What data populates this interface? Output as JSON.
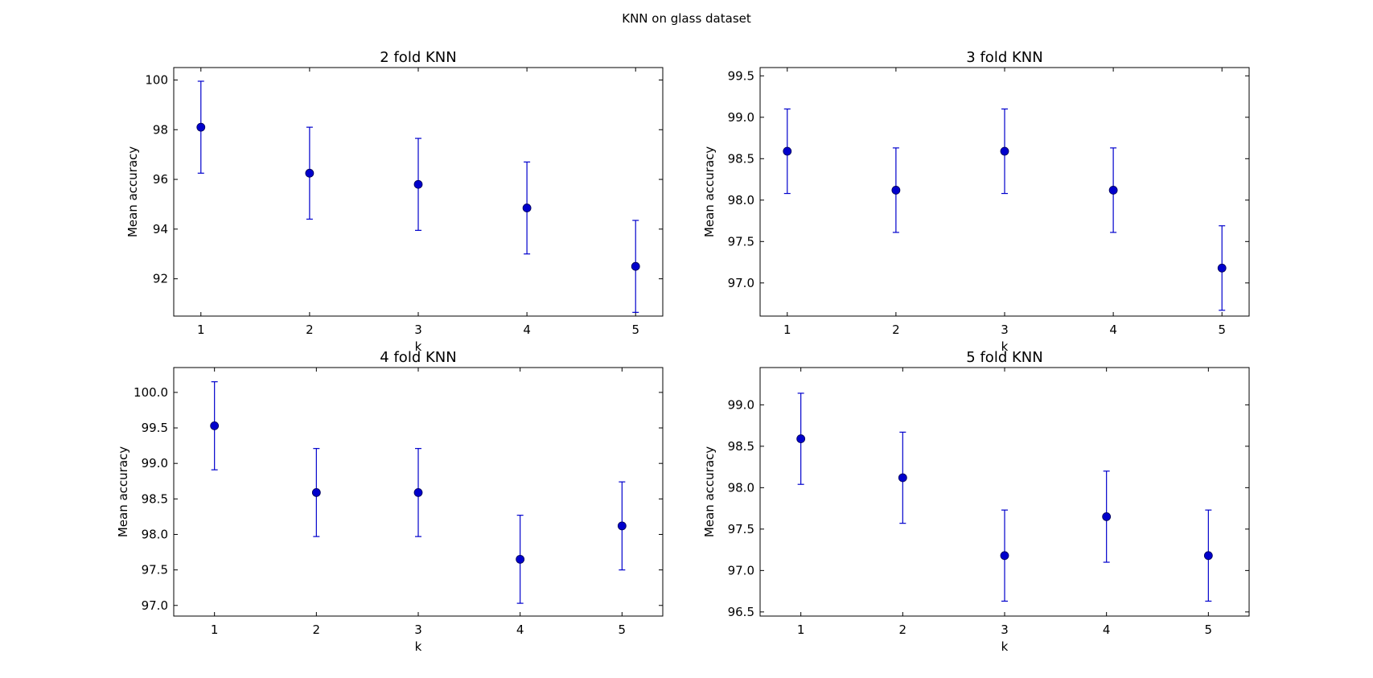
{
  "figure": {
    "suptitle": "KNN on glass dataset"
  },
  "chart_data": [
    {
      "type": "scatter",
      "title": "2 fold KNN",
      "xlabel": "k",
      "ylabel": "Mean accuracy",
      "x": [
        1,
        2,
        3,
        4,
        5
      ],
      "xticks": [
        1,
        2,
        3,
        4,
        5
      ],
      "xlim": [
        0.75,
        5.25
      ],
      "yticks": [
        92,
        94,
        96,
        98,
        100
      ],
      "ylim": [
        90.5,
        100.5
      ],
      "tick_decimals": 0,
      "values": [
        98.1,
        96.25,
        95.8,
        94.85,
        92.5
      ],
      "errors": [
        1.85,
        1.85,
        1.85,
        1.85,
        1.85
      ],
      "color": "#0000cc"
    },
    {
      "type": "scatter",
      "title": "3 fold KNN",
      "xlabel": "k",
      "ylabel": "Mean accuracy",
      "x": [
        1,
        2,
        3,
        4,
        5
      ],
      "xticks": [
        1,
        2,
        3,
        4,
        5
      ],
      "xlim": [
        0.75,
        5.25
      ],
      "yticks": [
        97.0,
        97.5,
        98.0,
        98.5,
        99.0,
        99.5
      ],
      "ylim": [
        96.6,
        99.6
      ],
      "tick_decimals": 1,
      "values": [
        98.59,
        98.12,
        98.59,
        98.12,
        97.18
      ],
      "errors": [
        0.51,
        0.51,
        0.51,
        0.51,
        0.51
      ],
      "color": "#0000cc"
    },
    {
      "type": "scatter",
      "title": "4 fold KNN",
      "xlabel": "k",
      "ylabel": "Mean accuracy",
      "x": [
        1,
        2,
        3,
        4,
        5
      ],
      "xticks": [
        1,
        2,
        3,
        4,
        5
      ],
      "xlim": [
        0.6,
        5.4
      ],
      "yticks": [
        97.0,
        97.5,
        98.0,
        98.5,
        99.0,
        99.5,
        100.0
      ],
      "ylim": [
        96.85,
        100.35
      ],
      "tick_decimals": 1,
      "values": [
        99.53,
        98.59,
        98.59,
        97.65,
        98.12
      ],
      "errors": [
        0.62,
        0.62,
        0.62,
        0.62,
        0.62
      ],
      "color": "#0000cc"
    },
    {
      "type": "scatter",
      "title": "5 fold KNN",
      "xlabel": "k",
      "ylabel": "Mean accuracy",
      "x": [
        1,
        2,
        3,
        4,
        5
      ],
      "xticks": [
        1,
        2,
        3,
        4,
        5
      ],
      "xlim": [
        0.6,
        5.4
      ],
      "yticks": [
        96.5,
        97.0,
        97.5,
        98.0,
        98.5,
        99.0
      ],
      "ylim": [
        96.45,
        99.45
      ],
      "tick_decimals": 1,
      "values": [
        98.59,
        98.12,
        97.18,
        97.65,
        97.18
      ],
      "errors": [
        0.55,
        0.55,
        0.55,
        0.55,
        0.55
      ],
      "color": "#0000cc"
    }
  ]
}
